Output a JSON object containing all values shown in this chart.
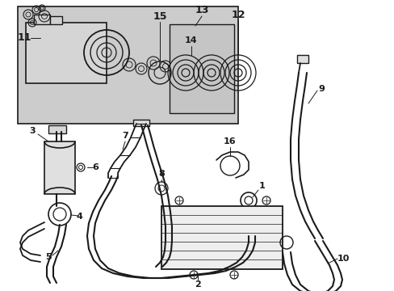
{
  "bg_color": "#ffffff",
  "line_color": "#1a1a1a",
  "inset_bg": "#cccccc",
  "figsize": [
    4.89,
    3.6
  ],
  "dpi": 100
}
